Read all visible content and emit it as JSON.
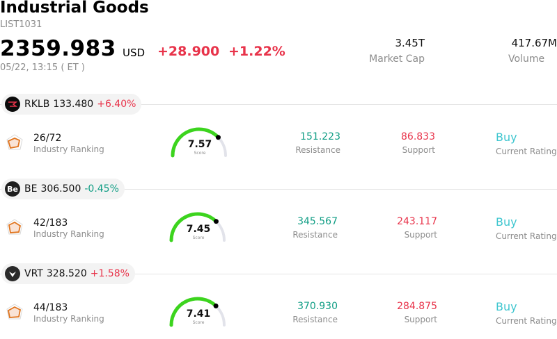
{
  "header": {
    "title": "Industrial Goods",
    "code": "LIST1031",
    "price": "2359.983",
    "currency": "USD",
    "change": "+28.900",
    "change_pct": "+1.22%",
    "time": "05/22, 13:15  ( ET )",
    "market_cap_value": "3.45T",
    "market_cap_label": "Market Cap",
    "volume_value": "417.67M",
    "volume_label": "Volume"
  },
  "stocks": [
    {
      "ticker": "RKLB",
      "price": "133.480",
      "change": "+6.40%",
      "direction": "up",
      "logo_icon": "rklb-logo-icon",
      "logo_text": "",
      "ranking": "26/72",
      "ranking_label": "Industry Ranking",
      "score": "7.57",
      "score_label": "Score",
      "score_fraction": 0.757,
      "resistance": "151.223",
      "resistance_label": "Resistance",
      "support": "86.833",
      "support_label": "Support",
      "rating": "Buy",
      "rating_label": "Current Rating"
    },
    {
      "ticker": "BE",
      "price": "306.500",
      "change": "-0.45%",
      "direction": "down",
      "logo_icon": "be-logo-icon",
      "logo_text": "Be",
      "ranking": "42/183",
      "ranking_label": "Industry Ranking",
      "score": "7.45",
      "score_label": "Score",
      "score_fraction": 0.745,
      "resistance": "345.567",
      "resistance_label": "Resistance",
      "support": "243.117",
      "support_label": "Support",
      "rating": "Buy",
      "rating_label": "Current Rating"
    },
    {
      "ticker": "VRT",
      "price": "328.520",
      "change": "+1.58%",
      "direction": "up",
      "logo_icon": "vrt-logo-icon",
      "logo_text": "",
      "ranking": "44/183",
      "ranking_label": "Industry Ranking",
      "score": "7.41",
      "score_label": "Score",
      "score_fraction": 0.741,
      "resistance": "370.930",
      "resistance_label": "Resistance",
      "support": "284.875",
      "support_label": "Support",
      "rating": "Buy",
      "rating_label": "Current Rating"
    }
  ],
  "colors": {
    "up": "#e8334a",
    "down": "#0f9d84",
    "gauge_fill": "#3cd41e",
    "gauge_track": "#e2e3ea",
    "rating": "#3ec6cf"
  }
}
